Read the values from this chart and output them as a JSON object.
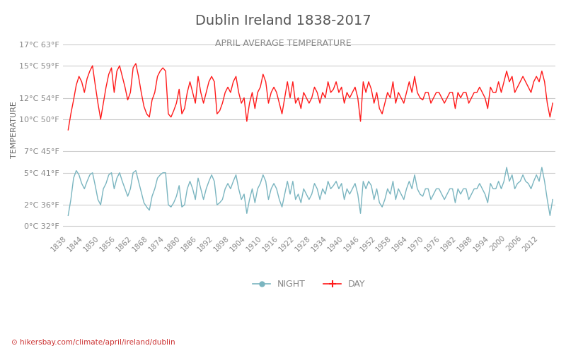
{
  "title": "Dublin Ireland 1838-2017",
  "subtitle": "APRIL AVERAGE TEMPERATURE",
  "ylabel": "TEMPERATURE",
  "footer": "hikersbay.com/climate/april/ireland/dublin",
  "years": [
    1838,
    1839,
    1840,
    1841,
    1842,
    1843,
    1844,
    1845,
    1846,
    1847,
    1848,
    1849,
    1850,
    1851,
    1852,
    1853,
    1854,
    1855,
    1856,
    1857,
    1858,
    1859,
    1860,
    1861,
    1862,
    1863,
    1864,
    1865,
    1866,
    1867,
    1868,
    1869,
    1870,
    1871,
    1872,
    1873,
    1874,
    1875,
    1876,
    1877,
    1878,
    1879,
    1880,
    1881,
    1882,
    1883,
    1884,
    1885,
    1886,
    1887,
    1888,
    1889,
    1890,
    1891,
    1892,
    1893,
    1894,
    1895,
    1896,
    1897,
    1898,
    1899,
    1900,
    1901,
    1902,
    1903,
    1904,
    1905,
    1906,
    1907,
    1908,
    1909,
    1910,
    1911,
    1912,
    1913,
    1914,
    1915,
    1916,
    1917,
    1918,
    1919,
    1920,
    1921,
    1922,
    1923,
    1924,
    1925,
    1926,
    1927,
    1928,
    1929,
    1930,
    1931,
    1932,
    1933,
    1934,
    1935,
    1936,
    1937,
    1938,
    1939,
    1940,
    1941,
    1942,
    1943,
    1944,
    1945,
    1946,
    1947,
    1948,
    1949,
    1950,
    1951,
    1952,
    1953,
    1954,
    1955,
    1956,
    1957,
    1958,
    1959,
    1960,
    1961,
    1962,
    1963,
    1964,
    1965,
    1966,
    1967,
    1968,
    1969,
    1970,
    1971,
    1972,
    1973,
    1974,
    1975,
    1976,
    1977,
    1978,
    1979,
    1980,
    1981,
    1982,
    1983,
    1984,
    1985,
    1986,
    1987,
    1988,
    1989,
    1990,
    1991,
    1992,
    1993,
    1994,
    1995,
    1996,
    1997,
    1998,
    1999,
    2000,
    2001,
    2002,
    2003,
    2004,
    2005,
    2006,
    2007,
    2008,
    2009,
    2010,
    2011,
    2012,
    2013,
    2014,
    2015,
    2016,
    2017
  ],
  "day_temps": [
    9.0,
    10.5,
    11.8,
    13.2,
    14.0,
    13.5,
    12.5,
    13.8,
    14.5,
    15.0,
    13.2,
    11.5,
    10.0,
    11.5,
    13.0,
    14.2,
    14.8,
    12.5,
    14.5,
    15.0,
    14.0,
    13.0,
    11.8,
    12.5,
    14.8,
    15.2,
    14.0,
    12.5,
    11.2,
    10.5,
    10.2,
    11.8,
    12.5,
    14.0,
    14.5,
    14.8,
    14.5,
    10.5,
    10.2,
    10.8,
    11.5,
    12.8,
    10.5,
    11.0,
    12.5,
    13.5,
    12.5,
    11.5,
    14.0,
    12.5,
    11.5,
    12.5,
    13.5,
    14.0,
    13.5,
    10.5,
    10.8,
    11.5,
    12.5,
    13.0,
    12.5,
    13.5,
    14.0,
    12.5,
    11.5,
    12.0,
    9.8,
    11.5,
    12.5,
    11.0,
    12.5,
    13.0,
    14.2,
    13.5,
    11.5,
    12.5,
    13.0,
    12.5,
    11.5,
    10.5,
    12.0,
    13.5,
    12.0,
    13.5,
    11.5,
    12.0,
    11.0,
    12.5,
    12.0,
    11.5,
    12.0,
    13.0,
    12.5,
    11.5,
    12.5,
    12.0,
    13.5,
    12.5,
    12.8,
    13.5,
    12.5,
    13.0,
    11.5,
    12.5,
    12.0,
    12.5,
    13.0,
    12.0,
    9.8,
    13.5,
    12.5,
    13.5,
    12.8,
    11.5,
    12.5,
    11.0,
    10.5,
    11.5,
    12.5,
    12.0,
    13.5,
    11.5,
    12.5,
    12.0,
    11.5,
    12.5,
    13.5,
    12.5,
    14.0,
    12.5,
    12.0,
    11.8,
    12.5,
    12.5,
    11.5,
    12.0,
    12.5,
    12.5,
    12.0,
    11.5,
    12.0,
    12.5,
    12.5,
    11.0,
    12.5,
    12.0,
    12.5,
    12.5,
    11.5,
    12.0,
    12.5,
    12.5,
    13.0,
    12.5,
    12.0,
    11.0,
    13.0,
    12.5,
    12.5,
    13.5,
    12.5,
    13.5,
    14.5,
    13.5,
    14.0,
    12.5,
    13.0,
    13.5,
    14.0,
    13.5,
    13.0,
    12.5,
    13.5,
    14.0,
    13.5,
    14.5,
    13.5,
    11.5,
    10.2,
    11.5
  ],
  "night_temps": [
    1.0,
    2.5,
    4.5,
    5.2,
    4.8,
    4.0,
    3.5,
    4.2,
    4.8,
    5.0,
    3.8,
    2.5,
    2.0,
    3.5,
    4.0,
    4.8,
    5.0,
    3.5,
    4.5,
    5.0,
    4.2,
    3.5,
    2.8,
    3.5,
    5.0,
    5.2,
    4.2,
    3.2,
    2.2,
    1.8,
    1.5,
    2.8,
    3.5,
    4.5,
    4.8,
    5.0,
    5.0,
    2.0,
    1.8,
    2.2,
    2.8,
    3.8,
    1.8,
    2.0,
    3.5,
    4.2,
    3.5,
    2.5,
    4.5,
    3.5,
    2.5,
    3.5,
    4.2,
    4.8,
    4.2,
    2.0,
    2.2,
    2.5,
    3.5,
    4.0,
    3.5,
    4.2,
    4.8,
    3.5,
    2.5,
    3.0,
    1.2,
    2.5,
    3.5,
    2.2,
    3.5,
    4.0,
    4.8,
    4.2,
    2.5,
    3.5,
    4.0,
    3.5,
    2.5,
    1.8,
    3.0,
    4.2,
    3.0,
    4.2,
    2.5,
    3.0,
    2.2,
    3.5,
    3.0,
    2.5,
    3.0,
    4.0,
    3.5,
    2.5,
    3.5,
    3.0,
    4.2,
    3.5,
    3.8,
    4.2,
    3.5,
    4.0,
    2.5,
    3.5,
    3.0,
    3.5,
    4.0,
    3.0,
    1.2,
    4.2,
    3.5,
    4.2,
    3.8,
    2.5,
    3.5,
    2.2,
    1.8,
    2.5,
    3.5,
    3.0,
    4.2,
    2.5,
    3.5,
    3.0,
    2.5,
    3.5,
    4.2,
    3.5,
    4.8,
    3.5,
    3.0,
    2.8,
    3.5,
    3.5,
    2.5,
    3.0,
    3.5,
    3.5,
    3.0,
    2.5,
    3.0,
    3.5,
    3.5,
    2.2,
    3.5,
    3.0,
    3.5,
    3.5,
    2.5,
    3.0,
    3.5,
    3.5,
    4.0,
    3.5,
    3.0,
    2.2,
    4.0,
    3.5,
    3.5,
    4.2,
    3.5,
    4.2,
    5.5,
    4.2,
    4.8,
    3.5,
    4.0,
    4.2,
    4.8,
    4.2,
    4.0,
    3.5,
    4.2,
    4.8,
    4.2,
    5.5,
    4.2,
    2.5,
    1.0,
    2.5
  ],
  "yticks_c": [
    0,
    2,
    5,
    7,
    10,
    12,
    15,
    17
  ],
  "yticks_f": [
    32,
    36,
    41,
    45,
    50,
    54,
    59,
    63
  ],
  "xticks": [
    1838,
    1844,
    1850,
    1856,
    1862,
    1868,
    1874,
    1880,
    1886,
    1892,
    1898,
    1904,
    1910,
    1916,
    1922,
    1928,
    1934,
    1940,
    1946,
    1952,
    1958,
    1964,
    1970,
    1976,
    1982,
    1988,
    1994,
    2000,
    2006,
    2012
  ],
  "day_color": "#ff1a1a",
  "night_color": "#7ab5c0",
  "grid_color": "#cccccc",
  "bg_color": "#ffffff",
  "title_color": "#555555",
  "subtitle_color": "#888888",
  "ylabel_color": "#666666",
  "tick_color": "#888888",
  "footer_color": "#cc3333",
  "legend_night_color": "#7ab5c0",
  "legend_day_color": "#ff1a1a",
  "ylim": [
    -0.5,
    18.5
  ],
  "xlim": [
    1836,
    2018
  ]
}
